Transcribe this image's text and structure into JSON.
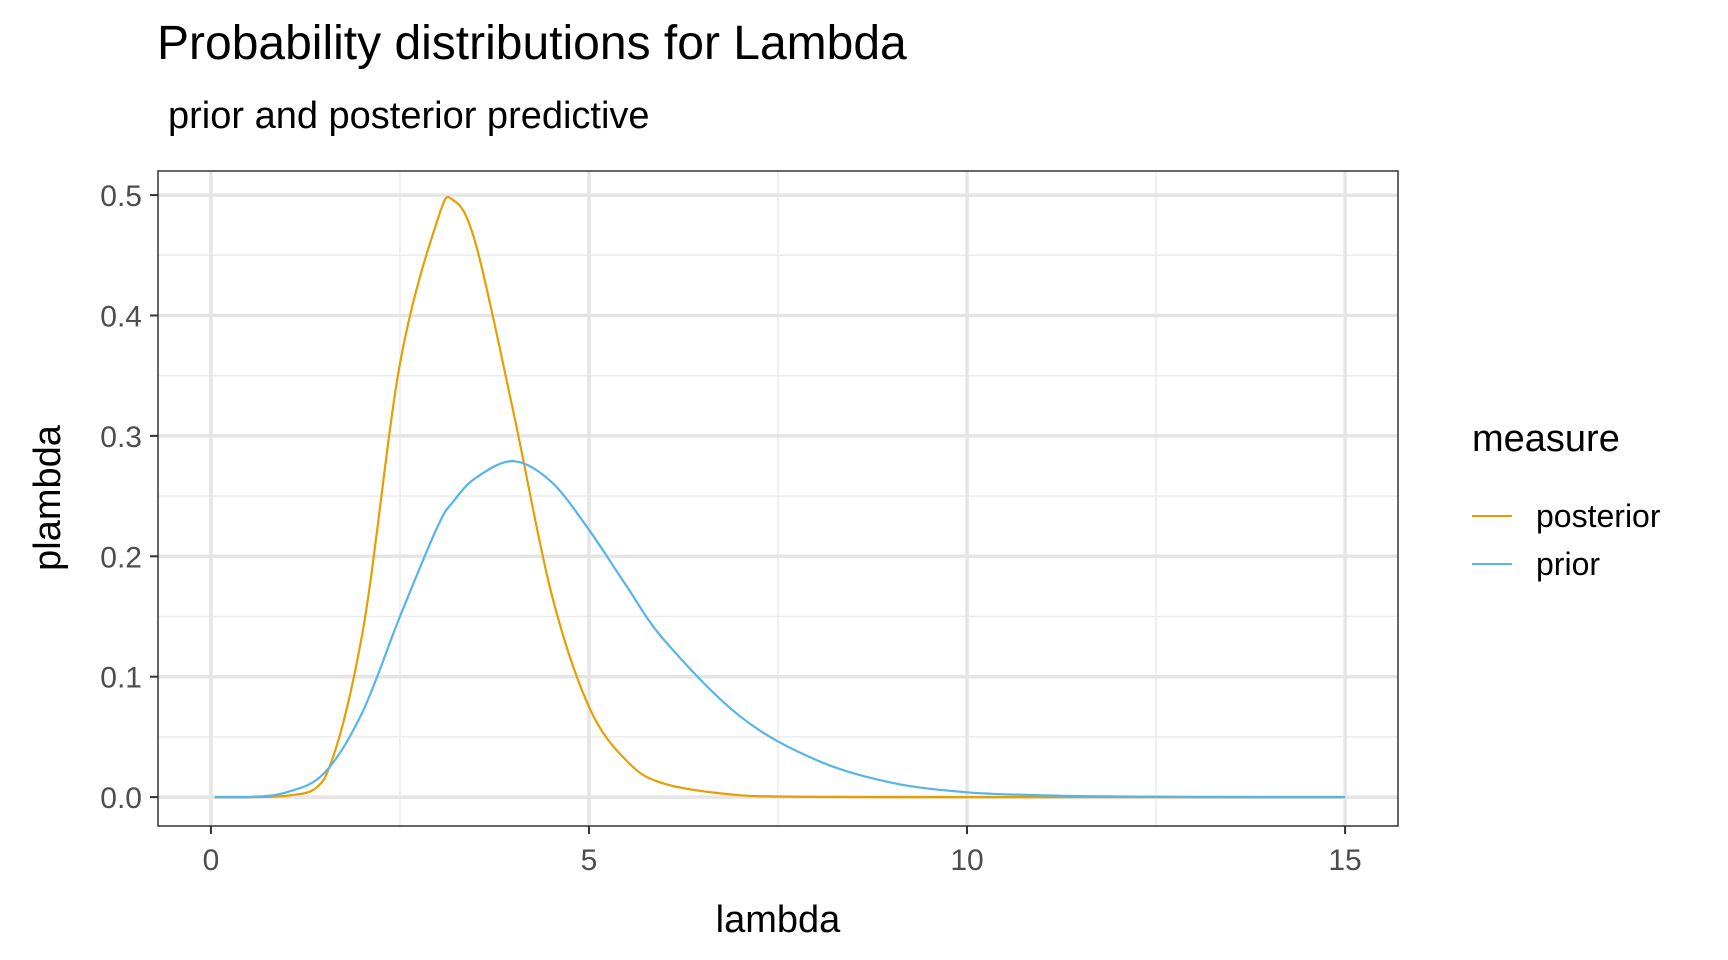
{
  "chart_data": {
    "type": "line",
    "title": "Probability distributions for Lambda",
    "subtitle": "prior and posterior predictive",
    "xlabel": "lambda",
    "ylabel": "plambda",
    "xlim": [
      -0.7,
      15.7
    ],
    "ylim": [
      -0.024,
      0.52
    ],
    "x_ticks": [
      0,
      5,
      10,
      15
    ],
    "x_tick_labels": [
      "0",
      "5",
      "10",
      "15"
    ],
    "y_ticks": [
      0.0,
      0.1,
      0.2,
      0.3,
      0.4,
      0.5
    ],
    "y_tick_labels": [
      "0.0",
      "0.1",
      "0.2",
      "0.3",
      "0.4",
      "0.5"
    ],
    "grid": true,
    "legend_title": "measure",
    "legend_position": "right",
    "x": [
      0.05,
      0.5,
      1.0,
      1.5,
      2.0,
      2.5,
      3.0,
      3.2,
      3.5,
      4.0,
      4.5,
      5.0,
      5.5,
      6.0,
      7.0,
      8.0,
      9.0,
      10.0,
      11.0,
      12.0,
      13.0,
      14.0,
      15.0
    ],
    "series": [
      {
        "name": "posterior",
        "color": "#E69F00",
        "values": [
          0.0,
          0.0,
          0.001,
          0.015,
          0.135,
          0.36,
          0.48,
          0.496,
          0.46,
          0.32,
          0.17,
          0.075,
          0.03,
          0.011,
          0.0015,
          0.0002,
          0.0,
          0.0,
          0.0,
          0.0,
          0.0,
          0.0,
          0.0
        ]
      },
      {
        "name": "prior",
        "color": "#56B4E9",
        "values": [
          0.0,
          0.0,
          0.004,
          0.02,
          0.07,
          0.15,
          0.225,
          0.245,
          0.265,
          0.279,
          0.262,
          0.222,
          0.175,
          0.13,
          0.067,
          0.031,
          0.012,
          0.004,
          0.0015,
          0.0005,
          0.0001,
          0.0,
          0.0
        ]
      }
    ]
  }
}
